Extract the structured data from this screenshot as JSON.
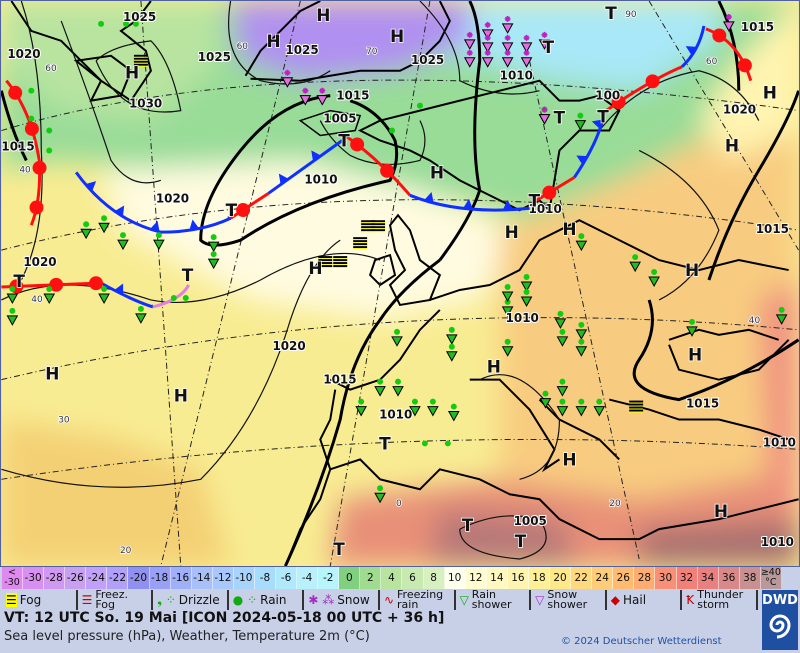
{
  "map": {
    "pressure_labels": [
      "1025",
      "1020",
      "1025",
      "1025",
      "1025",
      "1030",
      "1015",
      "1005",
      "1010",
      "1020",
      "1015",
      "1020",
      "1010",
      "100",
      "1015",
      "1020",
      "1010",
      "1015",
      "1020",
      "1015",
      "1010",
      "1010",
      "1015",
      "1010",
      "1005",
      "1010"
    ],
    "high_label": "H",
    "low_label": "T",
    "lat_labels": [
      "60",
      "60",
      "40",
      "70",
      "40",
      "30",
      "20",
      "0",
      "20",
      "40",
      "60",
      "90"
    ],
    "colors": {
      "warm_front": "#ff1010",
      "cold_front": "#1030ff",
      "occlusion": "#e080e0",
      "isobar": "#111111",
      "border": "#a01010"
    }
  },
  "scale": {
    "cells": [
      "<\n-30",
      "-30",
      "-28",
      "-26",
      "-24",
      "-22",
      "-20",
      "-18",
      "-16",
      "-14",
      "-12",
      "-10",
      "-8",
      "-6",
      "-4",
      "-2",
      "0",
      "2",
      "4",
      "6",
      "8",
      "10",
      "12",
      "14",
      "16",
      "18",
      "20",
      "22",
      "24",
      "26",
      "28",
      "30",
      "32",
      "34",
      "36",
      "38",
      "≥40\n°C"
    ],
    "colors": [
      "#e088f0",
      "#d890f0",
      "#d098f0",
      "#c8a0f0",
      "#c0a0f8",
      "#b0a0f8",
      "#9090f0",
      "#98a0f8",
      "#a0b0f8",
      "#a8c0f8",
      "#a8c8fc",
      "#a8d4fc",
      "#a8dcfc",
      "#b0e8fc",
      "#b8f0fc",
      "#b8f4fc",
      "#80d080",
      "#a0dc90",
      "#b8e4a0",
      "#c8eab0",
      "#d8f0c0",
      "#fffff0",
      "#fffcd0",
      "#fff8c0",
      "#fff4b0",
      "#fff098",
      "#ffe888",
      "#ffd880",
      "#ffcc78",
      "#ffbc70",
      "#ffac70",
      "#f89078",
      "#f08078",
      "#e88080",
      "#d88888",
      "#c89090",
      "#b89898"
    ]
  },
  "legend": [
    {
      "label": "Fog",
      "icon": "fog-icon"
    },
    {
      "label": "Freez.\nFog",
      "icon": "freezing-fog-icon"
    },
    {
      "label": "Drizzle",
      "icon": "drizzle-icon"
    },
    {
      "label": "Rain",
      "icon": "rain-icon"
    },
    {
      "label": "Snow",
      "icon": "snow-icon"
    },
    {
      "label": "Freezing\nrain",
      "icon": "freezing-rain-icon"
    },
    {
      "label": "Rain\nshower",
      "icon": "rain-shower-icon"
    },
    {
      "label": "Snow\nshower",
      "icon": "snow-shower-icon"
    },
    {
      "label": "Hail",
      "icon": "hail-icon"
    },
    {
      "label": "Thunder\nstorm",
      "icon": "thunderstorm-icon"
    }
  ],
  "footer": {
    "valid_time": "VT: 12 UTC So.  19 Mai [ICON 2024-05-18  00 UTC + 36 h]",
    "subtitle": "Sea level pressure (hPa), Weather, Temperature 2m (°C)",
    "copyright": "© 2024 Deutscher Wetterdienst",
    "logo": "DWD"
  }
}
